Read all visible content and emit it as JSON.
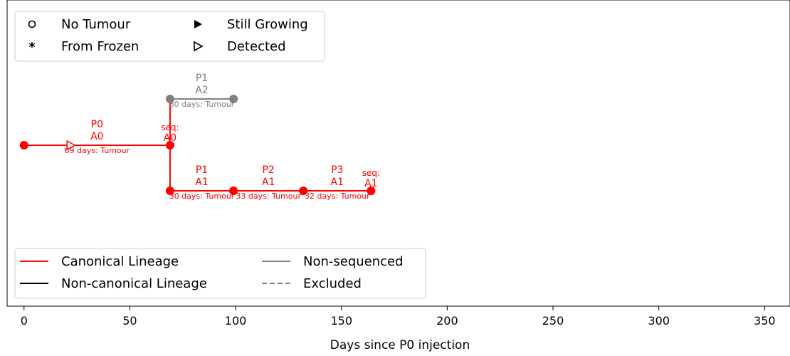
{
  "chart_data": {
    "type": "line",
    "title": "",
    "xlabel": "Days since P0 injection",
    "ylabel": "",
    "xlim": [
      -8,
      362
    ],
    "xticks": [
      0,
      50,
      100,
      150,
      200,
      250,
      300,
      350
    ],
    "grid": false,
    "colors": {
      "canonical": "#ff0000",
      "non_canonical": "#000000",
      "non_sequenced": "#808080",
      "excluded": "#808080"
    },
    "segments": [
      {
        "name": "P0",
        "sublabel": "A0",
        "x_start": 0,
        "x_end": 69,
        "row": 1,
        "status": "canonical",
        "duration": "69 days: Tumour",
        "detected_at": 22
      },
      {
        "name": "P1",
        "sublabel": "A1",
        "x_start": 69,
        "x_end": 99,
        "row": 2,
        "status": "canonical",
        "duration": "30 days: Tumour"
      },
      {
        "name": "P2",
        "sublabel": "A1",
        "x_start": 99,
        "x_end": 132,
        "row": 2,
        "status": "canonical",
        "duration": "33 days: Tumour"
      },
      {
        "name": "P3",
        "sublabel": "A1",
        "x_start": 132,
        "x_end": 164,
        "row": 2,
        "status": "canonical",
        "duration": "32 days: Tumour"
      },
      {
        "name": "P1",
        "sublabel": "A2",
        "x_start": 69,
        "x_end": 99,
        "row": 0,
        "status": "non_sequenced",
        "duration": "30 days: Tumour"
      }
    ],
    "connectors": [
      {
        "x": 69,
        "from_row": 1,
        "to_row": 2,
        "status": "canonical"
      },
      {
        "x": 69,
        "from_row": 1,
        "to_row": 0,
        "status": "canonical"
      }
    ],
    "seq_labels": [
      {
        "x": 69,
        "row": 1,
        "line1": "seq:",
        "line2": "A0"
      },
      {
        "x": 164,
        "row": 2,
        "line1": "seq:",
        "line2": "A1"
      }
    ],
    "marker_legend": [
      {
        "symbol": "circle-open",
        "label": "No Tumour"
      },
      {
        "symbol": "asterisk",
        "label": "From Frozen"
      },
      {
        "symbol": "triangle-filled",
        "label": "Still Growing"
      },
      {
        "symbol": "triangle-open",
        "label": "Detected"
      }
    ],
    "line_legend": [
      {
        "style": "solid",
        "color": "#ff0000",
        "label": "Canonical Lineage"
      },
      {
        "style": "solid",
        "color": "#000000",
        "label": "Non-canonical Lineage"
      },
      {
        "style": "solid",
        "color": "#808080",
        "label": "Non-sequenced"
      },
      {
        "style": "dashed",
        "color": "#808080",
        "label": "Excluded"
      }
    ],
    "marker_legend_placement": "upper-left",
    "line_legend_placement": "lower-left"
  }
}
